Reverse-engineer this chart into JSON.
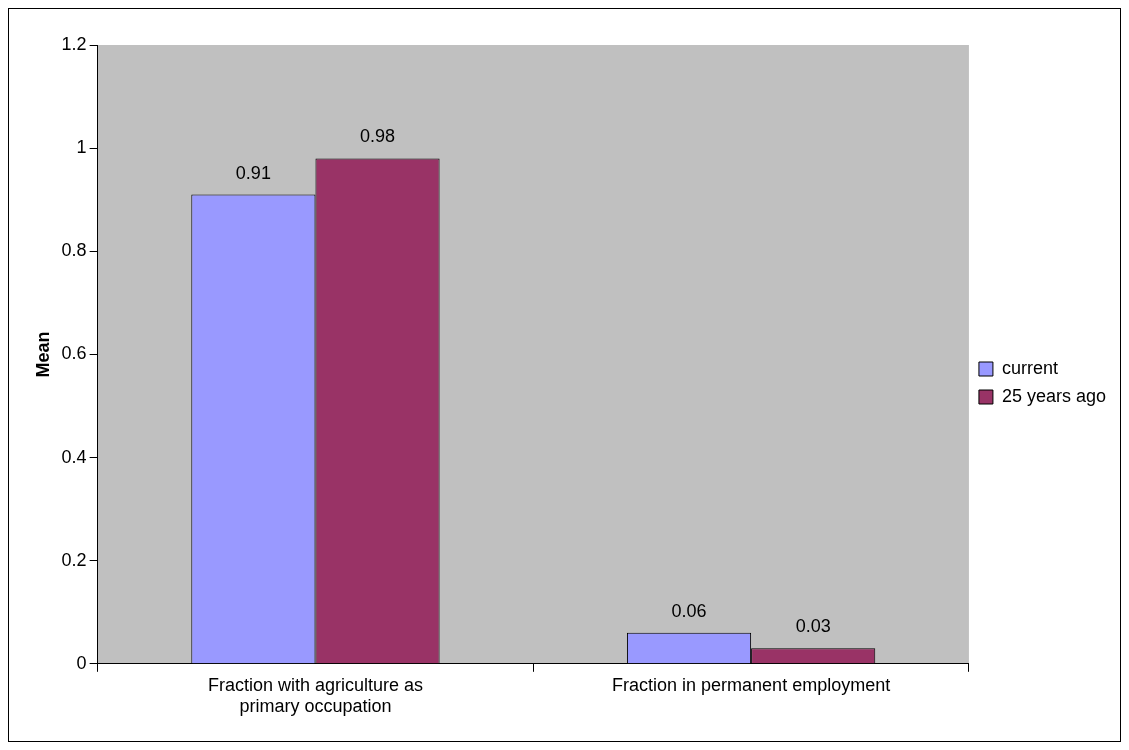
{
  "chart_data": {
    "type": "bar",
    "ylabel": "Mean",
    "categories": [
      "Fraction with agriculture as primary occupation",
      "Fraction in permanent employment"
    ],
    "series": [
      {
        "name": "current",
        "color": "#9999ff",
        "values": [
          0.91,
          0.06
        ]
      },
      {
        "name": "25 years ago",
        "color": "#993366",
        "values": [
          0.98,
          0.03
        ]
      }
    ],
    "ylim": [
      0,
      1.2
    ],
    "yticks": [
      0,
      0.2,
      0.4,
      0.6,
      0.8,
      1,
      1.2
    ],
    "grid": false,
    "legend": "right",
    "data_labels": true
  }
}
